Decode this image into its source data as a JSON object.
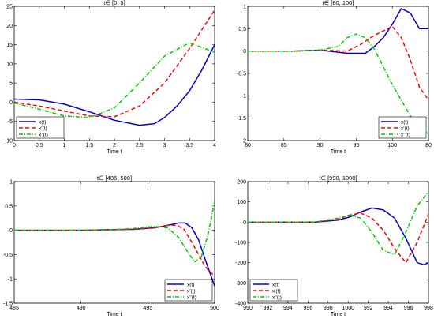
{
  "chart_data": [
    {
      "type": "line",
      "title": "t∈ [0, 5]",
      "xlabel": "Time t",
      "ylabel": "",
      "xlim": [
        0,
        4
      ],
      "ylim": [
        -10,
        25
      ],
      "xticks": [
        "0",
        "0.5",
        "1",
        "1.5",
        "2",
        "2.5",
        "3",
        "3.5",
        "4"
      ],
      "yticks": [
        "-10",
        "-5",
        "0",
        "5",
        "10",
        "15",
        "20",
        "25"
      ],
      "grid": false,
      "legend_position": "bottom-left",
      "series": [
        {
          "name": "x(t)",
          "color": "#0000cc",
          "style": "solid",
          "x": [
            0,
            0.5,
            1,
            1.5,
            2,
            2.5,
            2.8,
            3,
            3.25,
            3.5,
            3.75,
            4
          ],
          "y": [
            0.8,
            0.6,
            -0.5,
            -2.5,
            -4.7,
            -6,
            -5.6,
            -4,
            -1,
            3,
            8.5,
            15
          ]
        },
        {
          "name": "x'(t)",
          "color": "#ff0000",
          "style": "dashed",
          "x": [
            0,
            0.5,
            1,
            1.5,
            2,
            2.5,
            3,
            3.5,
            4
          ],
          "y": [
            0,
            -1,
            -2.3,
            -3.6,
            -3.8,
            -1,
            5,
            14,
            24
          ]
        },
        {
          "name": "x''(t)",
          "color": "#00cc00",
          "style": "dashdot",
          "x": [
            0,
            0.5,
            1,
            1.5,
            2,
            2.5,
            3,
            3.5,
            4
          ],
          "y": [
            -0.2,
            -1.8,
            -3.6,
            -4,
            -1.5,
            5,
            12,
            15.5,
            13
          ]
        }
      ]
    },
    {
      "type": "line",
      "title": "t∈ [80, 100]",
      "xlabel": "Time t",
      "ylabel": "",
      "xlim": [
        80,
        100
      ],
      "ylim": [
        -2,
        1
      ],
      "xticks": [
        "80",
        "85",
        "90",
        "95",
        "100",
        "80"
      ],
      "yticks": [
        "-2",
        "-1.5",
        "-1",
        "-0.5",
        "0",
        "0.5",
        "1"
      ],
      "grid": false,
      "legend_position": "bottom-right",
      "series": [
        {
          "name": "x(t)",
          "color": "#0000cc",
          "style": "solid",
          "x": [
            80,
            85,
            88,
            91,
            93,
            94,
            95,
            96,
            97,
            98,
            99,
            100
          ],
          "y": [
            0,
            0,
            0.02,
            -0.05,
            -0.05,
            0.1,
            0.3,
            0.6,
            0.95,
            0.85,
            0.5,
            0.5
          ]
        },
        {
          "name": "x'(t)",
          "color": "#ff0000",
          "style": "dashed",
          "x": [
            80,
            85,
            88,
            91,
            92.5,
            94,
            95,
            96,
            97,
            98,
            99,
            100
          ],
          "y": [
            0,
            0,
            0.02,
            0,
            0.15,
            0.35,
            0.45,
            0.55,
            0.3,
            -0.2,
            -0.8,
            -1.1
          ]
        },
        {
          "name": "x''(t)",
          "color": "#00cc00",
          "style": "dashdot",
          "x": [
            80,
            85,
            88,
            90,
            91,
            92,
            93,
            94,
            95,
            96,
            97,
            98,
            99,
            100
          ],
          "y": [
            0,
            0,
            0.02,
            0.1,
            0.3,
            0.38,
            0.3,
            0.05,
            -0.35,
            -0.75,
            -1.1,
            -1.45,
            -1.7,
            -1.85
          ]
        }
      ]
    },
    {
      "type": "line",
      "title": "t∈ [485, 500]",
      "xlabel": "Time t",
      "ylabel": "",
      "xlim": [
        485,
        500
      ],
      "ylim": [
        -1.5,
        1
      ],
      "xticks": [
        "485",
        "490",
        "495",
        "500"
      ],
      "yticks": [
        "-1.5",
        "-1",
        "-0.5",
        "0",
        "0.5",
        "1"
      ],
      "grid": false,
      "legend_position": "bottom-right",
      "series": [
        {
          "name": "x(t)",
          "color": "#0000cc",
          "style": "solid",
          "x": [
            485,
            490,
            494,
            495.5,
            496.5,
            497.3,
            497.8,
            498.3,
            498.8,
            499.3,
            500
          ],
          "y": [
            0,
            0,
            0.02,
            0.05,
            0.1,
            0.15,
            0.15,
            0.05,
            -0.2,
            -0.6,
            -1.15
          ]
        },
        {
          "name": "x'(t)",
          "color": "#ff0000",
          "style": "dashed",
          "x": [
            485,
            490,
            494,
            495.5,
            496.5,
            497.2,
            497.7,
            498.3,
            498.8,
            499.3,
            500
          ],
          "y": [
            0,
            0,
            0.02,
            0.05,
            0.1,
            0.1,
            0.02,
            -0.25,
            -0.5,
            -0.75,
            -0.95
          ]
        },
        {
          "name": "x''(t)",
          "color": "#00cc00",
          "style": "dashdot",
          "x": [
            485,
            490,
            493,
            494.5,
            495.5,
            496.5,
            497.3,
            498,
            498.5,
            499,
            499.5,
            500
          ],
          "y": [
            0,
            0,
            0.02,
            0.05,
            0.08,
            0.05,
            -0.15,
            -0.45,
            -0.65,
            -0.55,
            -0.1,
            0.6
          ]
        }
      ]
    },
    {
      "type": "line",
      "title": "t∈ [990, 1000]",
      "xlabel": "Time t",
      "ylabel": "",
      "xlim": [
        990,
        998
      ],
      "ylim": [
        -400,
        200
      ],
      "xticks": [
        "990",
        "992",
        "994",
        "996",
        "998",
        "1000",
        "992",
        "994",
        "996",
        "998"
      ],
      "yticks": [
        "-400",
        "-300",
        "-200",
        "-100",
        "0",
        "100",
        "200"
      ],
      "grid": false,
      "legend_position": "bottom-left",
      "series": [
        {
          "name": "x(t)",
          "color": "#0000cc",
          "style": "solid",
          "x": [
            990,
            991,
            992,
            993,
            994,
            994.5,
            995,
            995.5,
            996,
            996.5,
            997,
            997.5,
            997.8,
            998
          ],
          "y": [
            0,
            0,
            0,
            0.5,
            10,
            25,
            50,
            70,
            60,
            20,
            -80,
            -200,
            -210,
            -200
          ]
        },
        {
          "name": "x'(t)",
          "color": "#ff0000",
          "style": "dashed",
          "x": [
            990,
            991,
            992,
            993,
            994,
            994.5,
            995,
            995.5,
            996,
            996.5,
            997,
            997.5,
            998
          ],
          "y": [
            0,
            0,
            0,
            0.5,
            15,
            35,
            45,
            20,
            -40,
            -130,
            -200,
            -100,
            40
          ]
        },
        {
          "name": "x''(t)",
          "color": "#00cc00",
          "style": "dashdot",
          "x": [
            990,
            991,
            992,
            993,
            994,
            994.5,
            995,
            995.5,
            996,
            996.5,
            997,
            997.5,
            998
          ],
          "y": [
            0,
            0,
            0,
            1,
            20,
            35,
            20,
            -50,
            -140,
            -160,
            -50,
            80,
            150
          ]
        }
      ]
    }
  ]
}
